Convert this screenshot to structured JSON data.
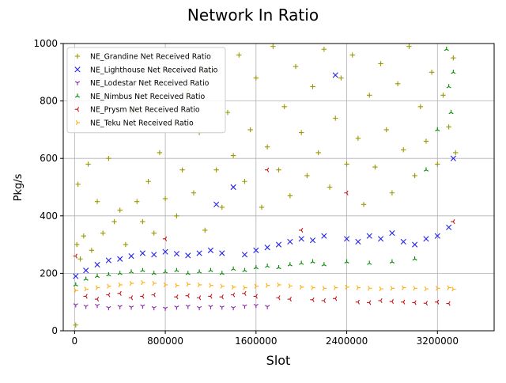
{
  "chart_data": {
    "type": "scatter",
    "title": "Network In Ratio",
    "xlabel": "Slot",
    "ylabel": "Pkg/s",
    "xlim": [
      -100000,
      3700000
    ],
    "ylim": [
      0,
      1000
    ],
    "xticks": [
      0,
      800000,
      1600000,
      2400000,
      3200000
    ],
    "xtick_labels": [
      "0",
      "800000",
      "1600000",
      "2400000",
      "3200000"
    ],
    "yticks": [
      0,
      200,
      400,
      600,
      800,
      1000
    ],
    "ytick_labels": [
      "0",
      "200",
      "400",
      "600",
      "800",
      "1000"
    ],
    "grid": true,
    "legend_position": "top-left",
    "series": [
      {
        "name": "NE_Grandine Net Received Ratio",
        "color": "#999900",
        "marker": "plus",
        "points": [
          [
            10000,
            20
          ],
          [
            20000,
            300
          ],
          [
            30000,
            510
          ],
          [
            50000,
            250
          ],
          [
            80000,
            330
          ],
          [
            120000,
            580
          ],
          [
            150000,
            280
          ],
          [
            200000,
            450
          ],
          [
            250000,
            340
          ],
          [
            300000,
            600
          ],
          [
            350000,
            380
          ],
          [
            400000,
            420
          ],
          [
            450000,
            300
          ],
          [
            500000,
            760
          ],
          [
            550000,
            450
          ],
          [
            600000,
            380
          ],
          [
            650000,
            520
          ],
          [
            700000,
            340
          ],
          [
            750000,
            620
          ],
          [
            800000,
            460
          ],
          [
            850000,
            720
          ],
          [
            900000,
            400
          ],
          [
            950000,
            560
          ],
          [
            1000000,
            830
          ],
          [
            1050000,
            480
          ],
          [
            1100000,
            690
          ],
          [
            1150000,
            350
          ],
          [
            1200000,
            900
          ],
          [
            1250000,
            560
          ],
          [
            1300000,
            430
          ],
          [
            1350000,
            760
          ],
          [
            1400000,
            610
          ],
          [
            1450000,
            960
          ],
          [
            1500000,
            520
          ],
          [
            1550000,
            700
          ],
          [
            1600000,
            880
          ],
          [
            1650000,
            430
          ],
          [
            1700000,
            640
          ],
          [
            1750000,
            990
          ],
          [
            1800000,
            560
          ],
          [
            1850000,
            780
          ],
          [
            1900000,
            470
          ],
          [
            1950000,
            920
          ],
          [
            2000000,
            690
          ],
          [
            2050000,
            540
          ],
          [
            2100000,
            850
          ],
          [
            2150000,
            620
          ],
          [
            2200000,
            980
          ],
          [
            2250000,
            500
          ],
          [
            2300000,
            740
          ],
          [
            2350000,
            880
          ],
          [
            2400000,
            580
          ],
          [
            2450000,
            960
          ],
          [
            2500000,
            670
          ],
          [
            2550000,
            440
          ],
          [
            2600000,
            820
          ],
          [
            2650000,
            570
          ],
          [
            2700000,
            930
          ],
          [
            2750000,
            700
          ],
          [
            2800000,
            480
          ],
          [
            2850000,
            860
          ],
          [
            2900000,
            630
          ],
          [
            2950000,
            990
          ],
          [
            3000000,
            540
          ],
          [
            3050000,
            780
          ],
          [
            3100000,
            660
          ],
          [
            3150000,
            900
          ],
          [
            3200000,
            580
          ],
          [
            3250000,
            820
          ],
          [
            3300000,
            710
          ],
          [
            3340000,
            950
          ],
          [
            3360000,
            620
          ]
        ]
      },
      {
        "name": "NE_Lighthouse Net Received Ratio",
        "color": "#2222ee",
        "marker": "x",
        "points": [
          [
            10000,
            190
          ],
          [
            100000,
            210
          ],
          [
            200000,
            230
          ],
          [
            300000,
            245
          ],
          [
            400000,
            250
          ],
          [
            500000,
            260
          ],
          [
            600000,
            270
          ],
          [
            700000,
            265
          ],
          [
            800000,
            275
          ],
          [
            900000,
            268
          ],
          [
            1000000,
            262
          ],
          [
            1100000,
            270
          ],
          [
            1200000,
            280
          ],
          [
            1250000,
            440
          ],
          [
            1300000,
            270
          ],
          [
            1400000,
            500
          ],
          [
            1500000,
            265
          ],
          [
            1600000,
            280
          ],
          [
            1700000,
            290
          ],
          [
            1800000,
            300
          ],
          [
            1900000,
            310
          ],
          [
            2000000,
            320
          ],
          [
            2100000,
            315
          ],
          [
            2200000,
            330
          ],
          [
            2300000,
            890
          ],
          [
            2400000,
            320
          ],
          [
            2500000,
            310
          ],
          [
            2600000,
            330
          ],
          [
            2700000,
            320
          ],
          [
            2800000,
            340
          ],
          [
            2900000,
            310
          ],
          [
            3000000,
            300
          ],
          [
            3100000,
            320
          ],
          [
            3200000,
            330
          ],
          [
            3300000,
            360
          ],
          [
            3340000,
            600
          ]
        ]
      },
      {
        "name": "NE_Lodestar Net Received Ratio",
        "color": "#8822aa",
        "marker": "tri_down",
        "points": [
          [
            10000,
            90
          ],
          [
            100000,
            85
          ],
          [
            200000,
            88
          ],
          [
            300000,
            80
          ],
          [
            400000,
            84
          ],
          [
            500000,
            82
          ],
          [
            600000,
            86
          ],
          [
            700000,
            80
          ],
          [
            800000,
            78
          ],
          [
            900000,
            82
          ],
          [
            1000000,
            85
          ],
          [
            1100000,
            80
          ],
          [
            1200000,
            84
          ],
          [
            1300000,
            82
          ],
          [
            1400000,
            80
          ],
          [
            1500000,
            86
          ],
          [
            1600000,
            88
          ],
          [
            1700000,
            84
          ]
        ]
      },
      {
        "name": "NE_Nimbus Net Received Ratio",
        "color": "#008800",
        "marker": "tri_up",
        "points": [
          [
            10000,
            160
          ],
          [
            100000,
            180
          ],
          [
            200000,
            190
          ],
          [
            300000,
            195
          ],
          [
            400000,
            200
          ],
          [
            500000,
            205
          ],
          [
            600000,
            210
          ],
          [
            700000,
            200
          ],
          [
            800000,
            205
          ],
          [
            900000,
            210
          ],
          [
            1000000,
            200
          ],
          [
            1100000,
            205
          ],
          [
            1200000,
            210
          ],
          [
            1300000,
            200
          ],
          [
            1400000,
            215
          ],
          [
            1500000,
            210
          ],
          [
            1600000,
            220
          ],
          [
            1700000,
            225
          ],
          [
            1800000,
            220
          ],
          [
            1900000,
            230
          ],
          [
            2000000,
            235
          ],
          [
            2100000,
            240
          ],
          [
            2200000,
            230
          ],
          [
            2400000,
            240
          ],
          [
            2600000,
            235
          ],
          [
            2800000,
            240
          ],
          [
            3000000,
            250
          ],
          [
            3100000,
            560
          ],
          [
            3200000,
            700
          ],
          [
            3280000,
            980
          ],
          [
            3300000,
            850
          ],
          [
            3320000,
            760
          ],
          [
            3340000,
            900
          ]
        ]
      },
      {
        "name": "NE_Prysm Net Received Ratio",
        "color": "#cc1111",
        "marker": "tri_left",
        "points": [
          [
            10000,
            260
          ],
          [
            100000,
            120
          ],
          [
            200000,
            110
          ],
          [
            300000,
            125
          ],
          [
            400000,
            130
          ],
          [
            500000,
            115
          ],
          [
            600000,
            120
          ],
          [
            700000,
            125
          ],
          [
            800000,
            320
          ],
          [
            900000,
            118
          ],
          [
            1000000,
            122
          ],
          [
            1100000,
            115
          ],
          [
            1200000,
            120
          ],
          [
            1300000,
            118
          ],
          [
            1400000,
            125
          ],
          [
            1500000,
            130
          ],
          [
            1600000,
            120
          ],
          [
            1700000,
            560
          ],
          [
            1800000,
            115
          ],
          [
            1900000,
            110
          ],
          [
            2000000,
            350
          ],
          [
            2100000,
            108
          ],
          [
            2200000,
            105
          ],
          [
            2300000,
            112
          ],
          [
            2400000,
            480
          ],
          [
            2500000,
            100
          ],
          [
            2600000,
            98
          ],
          [
            2700000,
            105
          ],
          [
            2800000,
            102
          ],
          [
            2900000,
            100
          ],
          [
            3000000,
            98
          ],
          [
            3100000,
            96
          ],
          [
            3200000,
            100
          ],
          [
            3300000,
            95
          ],
          [
            3340000,
            380
          ]
        ]
      },
      {
        "name": "NE_Teku Net Received Ratio",
        "color": "#ffaa00",
        "marker": "tri_right",
        "points": [
          [
            10000,
            140
          ],
          [
            100000,
            145
          ],
          [
            200000,
            150
          ],
          [
            300000,
            155
          ],
          [
            400000,
            160
          ],
          [
            500000,
            165
          ],
          [
            600000,
            168
          ],
          [
            700000,
            165
          ],
          [
            800000,
            160
          ],
          [
            900000,
            158
          ],
          [
            1000000,
            162
          ],
          [
            1100000,
            160
          ],
          [
            1200000,
            158
          ],
          [
            1300000,
            155
          ],
          [
            1400000,
            152
          ],
          [
            1500000,
            150
          ],
          [
            1600000,
            155
          ],
          [
            1700000,
            158
          ],
          [
            1800000,
            160
          ],
          [
            1900000,
            156
          ],
          [
            2000000,
            152
          ],
          [
            2100000,
            150
          ],
          [
            2200000,
            148
          ],
          [
            2300000,
            150
          ],
          [
            2400000,
            152
          ],
          [
            2500000,
            150
          ],
          [
            2600000,
            148
          ],
          [
            2700000,
            146
          ],
          [
            2800000,
            148
          ],
          [
            2900000,
            150
          ],
          [
            3000000,
            148
          ],
          [
            3100000,
            146
          ],
          [
            3200000,
            148
          ],
          [
            3300000,
            150
          ],
          [
            3340000,
            145
          ]
        ]
      }
    ]
  }
}
